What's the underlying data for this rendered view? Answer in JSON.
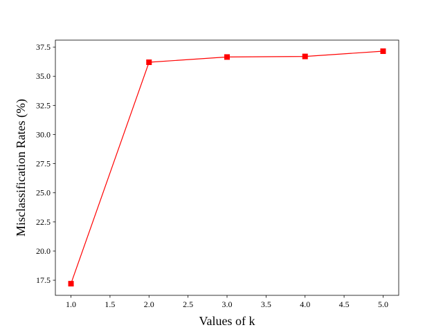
{
  "chart_data": {
    "type": "line",
    "title": "",
    "xlabel": "Values of k",
    "ylabel": "Misclassification Rates (%)",
    "xlim": [
      0.8,
      5.2
    ],
    "ylim": [
      16.2,
      38.1
    ],
    "x_ticks": [
      1.0,
      1.5,
      2.0,
      2.5,
      3.0,
      3.5,
      4.0,
      4.5,
      5.0
    ],
    "x_tick_labels": [
      "1.0",
      "1.5",
      "2.0",
      "2.5",
      "3.0",
      "3.5",
      "4.0",
      "4.5",
      "5.0"
    ],
    "y_ticks": [
      17.5,
      20.0,
      22.5,
      25.0,
      27.5,
      30.0,
      32.5,
      35.0,
      37.5
    ],
    "y_tick_labels": [
      "17.5",
      "20.0",
      "22.5",
      "25.0",
      "27.5",
      "30.0",
      "32.5",
      "35.0",
      "37.5"
    ],
    "grid": false,
    "series": [
      {
        "x": [
          1,
          2,
          3,
          4,
          5
        ],
        "y": [
          17.2,
          36.2,
          36.65,
          36.7,
          37.15
        ],
        "color": "#ff0000",
        "marker": "square"
      }
    ]
  }
}
